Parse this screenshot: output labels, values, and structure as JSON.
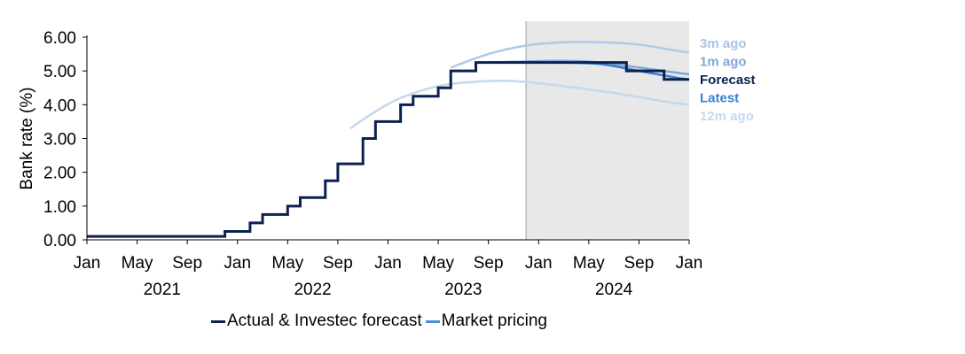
{
  "chart_data": {
    "type": "line",
    "title": "",
    "xlabel": "",
    "ylabel": "Bank rate (%)",
    "ylim": [
      0,
      6
    ],
    "yticks": [
      "0.00",
      "1.00",
      "2.00",
      "3.00",
      "4.00",
      "5.00",
      "6.00"
    ],
    "xlim": [
      "2021-01",
      "2025-01"
    ],
    "month_ticks": [
      {
        "label": "Jan",
        "date": "2021-01"
      },
      {
        "label": "May",
        "date": "2021-05"
      },
      {
        "label": "Sep",
        "date": "2021-09"
      },
      {
        "label": "Jan",
        "date": "2022-01"
      },
      {
        "label": "May",
        "date": "2022-05"
      },
      {
        "label": "Sep",
        "date": "2022-09"
      },
      {
        "label": "Jan",
        "date": "2023-01"
      },
      {
        "label": "May",
        "date": "2023-05"
      },
      {
        "label": "Sep",
        "date": "2023-09"
      },
      {
        "label": "Jan",
        "date": "2024-01"
      },
      {
        "label": "May",
        "date": "2024-05"
      },
      {
        "label": "Sep",
        "date": "2024-09"
      },
      {
        "label": "Jan",
        "date": "2025-01"
      }
    ],
    "year_labels": [
      {
        "label": "2021",
        "date": "2021-07"
      },
      {
        "label": "2022",
        "date": "2022-07"
      },
      {
        "label": "2023",
        "date": "2023-07"
      },
      {
        "label": "2024",
        "date": "2024-07"
      }
    ],
    "forecast_shading_start": "2023-12",
    "legend": [
      {
        "label": "Actual & Investec forecast",
        "color": "#0b2150"
      },
      {
        "label": "Market pricing",
        "color": "#4a90d9"
      }
    ],
    "series": [
      {
        "name": "Actual & Investec forecast",
        "color": "#0b2150",
        "step": true,
        "points": [
          [
            "2021-01",
            0.1
          ],
          [
            "2021-12",
            0.25
          ],
          [
            "2022-02",
            0.5
          ],
          [
            "2022-03",
            0.75
          ],
          [
            "2022-05",
            1.0
          ],
          [
            "2022-06",
            1.25
          ],
          [
            "2022-08",
            1.75
          ],
          [
            "2022-09",
            2.25
          ],
          [
            "2022-11",
            3.0
          ],
          [
            "2022-12",
            3.5
          ],
          [
            "2023-02",
            4.0
          ],
          [
            "2023-03",
            4.25
          ],
          [
            "2023-05",
            4.5
          ],
          [
            "2023-06",
            5.0
          ],
          [
            "2023-08",
            5.25
          ],
          [
            "2024-08",
            5.0
          ],
          [
            "2024-11",
            4.75
          ],
          [
            "2025-01",
            4.75
          ]
        ]
      },
      {
        "name": "3m ago",
        "label": "3m ago",
        "color": "#b0c9e6",
        "points": [
          [
            "2023-06",
            5.1
          ],
          [
            "2023-09",
            5.5
          ],
          [
            "2023-12",
            5.75
          ],
          [
            "2024-03",
            5.85
          ],
          [
            "2024-06",
            5.85
          ],
          [
            "2024-09",
            5.78
          ],
          [
            "2024-12",
            5.6
          ],
          [
            "2025-01",
            5.55
          ]
        ]
      },
      {
        "name": "1m ago",
        "label": "1m ago",
        "color": "#7fa8d8",
        "points": [
          [
            "2023-09",
            5.25
          ],
          [
            "2023-12",
            5.28
          ],
          [
            "2024-03",
            5.3
          ],
          [
            "2024-06",
            5.25
          ],
          [
            "2024-09",
            5.1
          ],
          [
            "2024-12",
            4.95
          ],
          [
            "2025-01",
            4.9
          ]
        ]
      },
      {
        "name": "Latest",
        "label": "Latest",
        "color": "#3a7fd0",
        "points": [
          [
            "2023-09",
            5.25
          ],
          [
            "2023-12",
            5.25
          ],
          [
            "2024-03",
            5.25
          ],
          [
            "2024-06",
            5.2
          ],
          [
            "2024-09",
            5.0
          ],
          [
            "2024-12",
            4.8
          ],
          [
            "2025-01",
            4.75
          ]
        ]
      },
      {
        "name": "12m ago",
        "label": "12m ago",
        "color": "#c5d8ee",
        "points": [
          [
            "2022-10",
            3.3
          ],
          [
            "2022-12",
            3.8
          ],
          [
            "2023-02",
            4.2
          ],
          [
            "2023-05",
            4.55
          ],
          [
            "2023-08",
            4.68
          ],
          [
            "2023-11",
            4.7
          ],
          [
            "2024-03",
            4.55
          ],
          [
            "2024-07",
            4.35
          ],
          [
            "2024-11",
            4.1
          ],
          [
            "2025-01",
            4.0
          ]
        ]
      }
    ],
    "end_labels": [
      {
        "text": "3m ago",
        "color": "#a8c4e6"
      },
      {
        "text": "1m ago",
        "color": "#7fa8d8"
      },
      {
        "text": "Forecast",
        "color": "#0b2150"
      },
      {
        "text": "Latest",
        "color": "#3a7fd0"
      },
      {
        "text": "12m ago",
        "color": "#c5d8ee"
      }
    ]
  }
}
